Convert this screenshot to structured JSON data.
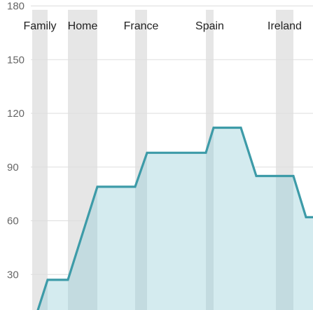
{
  "colors": {
    "line": "#3d9ba8",
    "area": "#d4ebef",
    "band": "#e6e6e6",
    "band_over_area": "#c3dbe0",
    "grid": "#dddddd",
    "tick_text": "#666666",
    "label_text": "#222222"
  },
  "chart_data": {
    "type": "area",
    "title": "",
    "xlabel": "",
    "ylabel": "",
    "ylim": [
      10,
      180
    ],
    "yticks": [
      30,
      60,
      90,
      120,
      150,
      180
    ],
    "grid": true,
    "x_range": [
      0,
      447
    ],
    "band_labels": [
      "Family",
      "Home",
      "France",
      "Spain",
      "Ireland"
    ],
    "bands": [
      {
        "label": "Family",
        "start": 46,
        "end": 68
      },
      {
        "label": "Home",
        "start": 97,
        "end": 139
      },
      {
        "label": "France",
        "start": 193,
        "end": 210
      },
      {
        "label": "Spain",
        "start": 294,
        "end": 305
      },
      {
        "label": "Ireland",
        "start": 394,
        "end": 419
      }
    ],
    "series": [
      {
        "x": [
          54,
          68,
          97,
          139,
          193,
          210,
          294,
          305,
          344,
          366,
          419,
          437,
          447
        ],
        "values": [
          10,
          27,
          27,
          79,
          79,
          98,
          98,
          112,
          112,
          85,
          85,
          62,
          62
        ]
      }
    ]
  }
}
